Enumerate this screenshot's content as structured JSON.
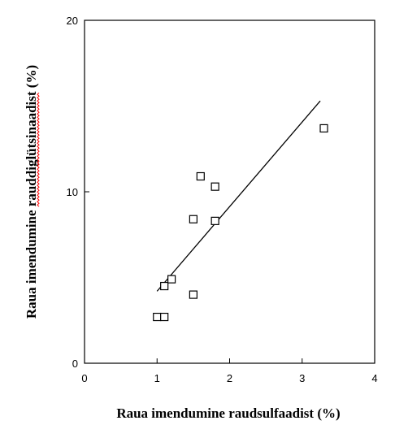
{
  "chart_data": {
    "type": "scatter",
    "title": "",
    "xlabel": "Raua imendumine raudsulfaadist (%)",
    "ylabel_part1": "Raua imendumine ",
    "ylabel_part2": "rauddiglütsinaadist",
    "ylabel_part3": " (%)",
    "xlim": [
      0,
      4
    ],
    "ylim": [
      0,
      20
    ],
    "x_ticks": [
      0,
      1,
      2,
      3,
      4
    ],
    "y_ticks": [
      0,
      10,
      20
    ],
    "grid": false,
    "points": [
      {
        "x": 1.0,
        "y": 2.7
      },
      {
        "x": 1.1,
        "y": 2.7
      },
      {
        "x": 1.1,
        "y": 4.5
      },
      {
        "x": 1.2,
        "y": 4.9
      },
      {
        "x": 1.5,
        "y": 4.0
      },
      {
        "x": 1.5,
        "y": 8.4
      },
      {
        "x": 1.6,
        "y": 10.9
      },
      {
        "x": 1.8,
        "y": 10.3
      },
      {
        "x": 1.8,
        "y": 8.3
      },
      {
        "x": 3.3,
        "y": 13.7
      }
    ],
    "regression_line": {
      "x": [
        1.0,
        3.25
      ],
      "y": [
        4.2,
        15.3
      ]
    },
    "marker": "open-square",
    "colors": {
      "ink": "#000000",
      "spellcheck_underline": "#ff0000"
    }
  }
}
